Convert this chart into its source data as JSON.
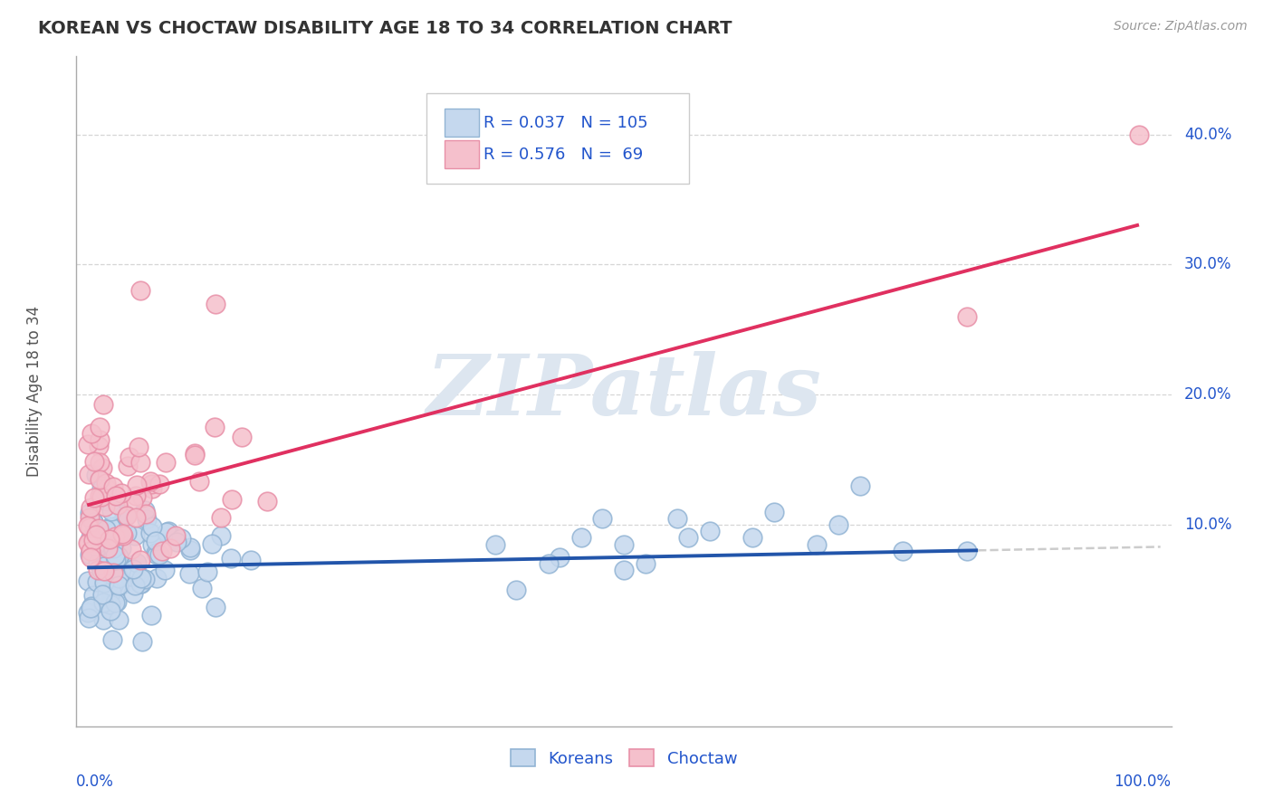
{
  "title": "KOREAN VS CHOCTAW DISABILITY AGE 18 TO 34 CORRELATION CHART",
  "source_text": "Source: ZipAtlas.com",
  "ylabel": "Disability Age 18 to 34",
  "korean_R": 0.037,
  "korean_N": 105,
  "choctaw_R": 0.576,
  "choctaw_N": 69,
  "korean_color_face": "#c5d8ee",
  "korean_color_edge": "#92b4d4",
  "choctaw_color_face": "#f5c0cc",
  "choctaw_color_edge": "#e890a8",
  "korean_line_color": "#2255aa",
  "choctaw_line_color": "#e03060",
  "grid_color": "#cccccc",
  "watermark_color": "#dde6f0",
  "legend_text_color": "#2255cc",
  "axis_label_color": "#2255cc",
  "background_color": "#ffffff",
  "title_color": "#333333",
  "ylabel_color": "#555555",
  "source_color": "#999999",
  "korean_line_intercept": 0.067,
  "korean_line_slope": 0.016,
  "korean_line_solid_end": 0.83,
  "choctaw_line_intercept": 0.115,
  "choctaw_line_slope": 0.22,
  "choctaw_line_solid_end": 0.98,
  "xlim_min": -0.01,
  "xlim_max": 1.01,
  "ylim_min": -0.055,
  "ylim_max": 0.46,
  "ytick_vals": [
    0.1,
    0.2,
    0.3,
    0.4
  ],
  "ytick_labels": [
    "10.0%",
    "20.0%",
    "30.0%",
    "40.0%"
  ],
  "marker_size": 220,
  "marker_linewidth": 1.2
}
